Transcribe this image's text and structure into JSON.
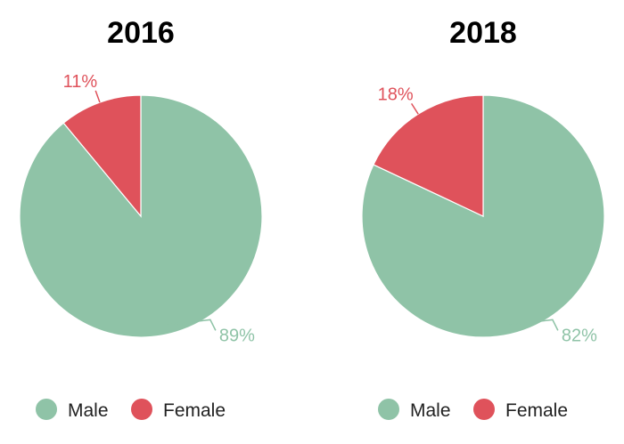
{
  "colors": {
    "male": "#8fc3a7",
    "female": "#df525b"
  },
  "chart_data": [
    {
      "type": "pie",
      "title": "2016",
      "slices": [
        {
          "label": "Male",
          "value": 89,
          "value_label": "89%",
          "color": "#8fc3a7"
        },
        {
          "label": "Female",
          "value": 11,
          "value_label": "11%",
          "color": "#df525b"
        }
      ],
      "legend": [
        "Male",
        "Female"
      ],
      "legend_position": "bottom"
    },
    {
      "type": "pie",
      "title": "2018",
      "slices": [
        {
          "label": "Male",
          "value": 82,
          "value_label": "82%",
          "color": "#8fc3a7"
        },
        {
          "label": "Female",
          "value": 18,
          "value_label": "18%",
          "color": "#df525b"
        }
      ],
      "legend": [
        "Male",
        "Female"
      ],
      "legend_position": "bottom"
    }
  ]
}
